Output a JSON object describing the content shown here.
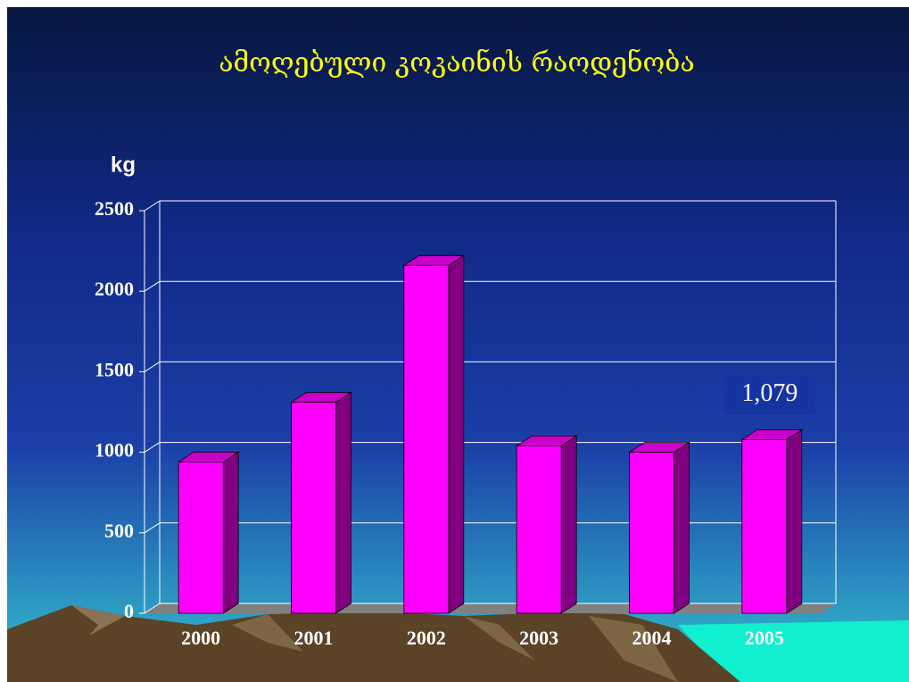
{
  "chart_data": {
    "type": "bar3d",
    "title": "ამოღებული კოკაინის რაოდენობა",
    "y_label": "kg",
    "categories": [
      "2000",
      "2001",
      "2002",
      "2003",
      "2004",
      "2005"
    ],
    "values": [
      940,
      1310,
      2160,
      1040,
      1000,
      1079
    ],
    "value_labels": [
      null,
      null,
      null,
      null,
      null,
      "1,079"
    ],
    "color": "#ff00ff",
    "ylim": [
      0,
      2500
    ],
    "yticks": [
      0,
      500,
      1000,
      1500,
      2000,
      2500
    ],
    "grid": true
  }
}
